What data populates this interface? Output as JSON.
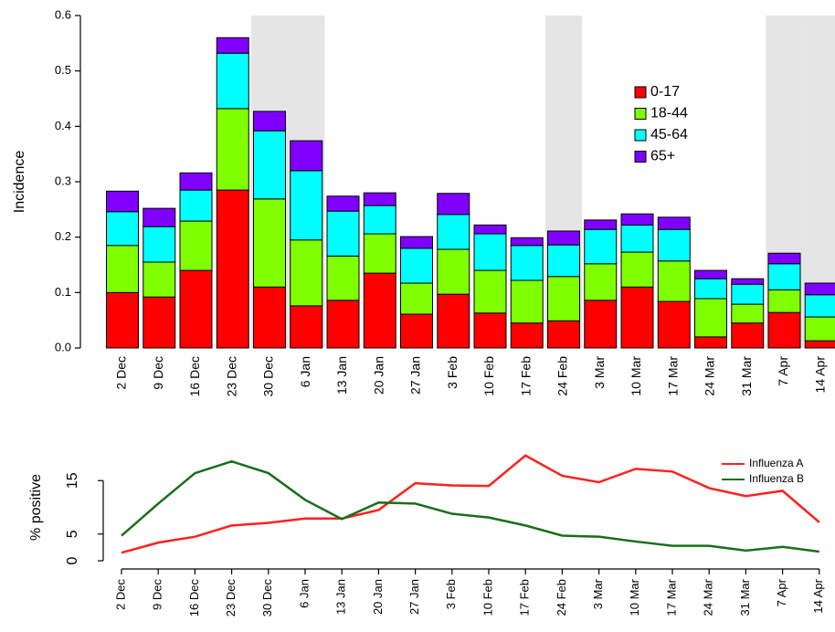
{
  "chart_data": [
    {
      "type": "bar",
      "stacked": true,
      "y_label": "Incidence",
      "categories": [
        "2 Dec",
        "9 Dec",
        "16 Dec",
        "23 Dec",
        "30 Dec",
        "6 Jan",
        "13 Jan",
        "20 Jan",
        "27 Jan",
        "3 Feb",
        "10 Feb",
        "17 Feb",
        "24 Feb",
        "3 Mar",
        "10 Mar",
        "17 Mar",
        "24 Mar",
        "31 Mar",
        "7 Apr",
        "14 Apr"
      ],
      "series": [
        {
          "name": "0-17",
          "color": "#ff0000",
          "values": [
            0.1,
            0.092,
            0.14,
            0.285,
            0.11,
            0.076,
            0.086,
            0.135,
            0.061,
            0.097,
            0.063,
            0.045,
            0.049,
            0.086,
            0.11,
            0.084,
            0.02,
            0.045,
            0.064,
            0.013
          ]
        },
        {
          "name": "18-44",
          "color": "#80ff00",
          "values": [
            0.085,
            0.063,
            0.089,
            0.147,
            0.159,
            0.119,
            0.08,
            0.071,
            0.056,
            0.081,
            0.077,
            0.077,
            0.08,
            0.066,
            0.063,
            0.073,
            0.069,
            0.034,
            0.041,
            0.043
          ]
        },
        {
          "name": "45-64",
          "color": "#00ffff",
          "values": [
            0.061,
            0.064,
            0.056,
            0.1,
            0.123,
            0.125,
            0.081,
            0.051,
            0.063,
            0.063,
            0.066,
            0.063,
            0.057,
            0.062,
            0.049,
            0.057,
            0.036,
            0.036,
            0.047,
            0.04
          ]
        },
        {
          "name": "65+",
          "color": "#8000ff",
          "values": [
            0.037,
            0.033,
            0.031,
            0.028,
            0.035,
            0.054,
            0.027,
            0.023,
            0.021,
            0.038,
            0.016,
            0.014,
            0.025,
            0.017,
            0.02,
            0.022,
            0.015,
            0.01,
            0.019,
            0.021
          ]
        }
      ],
      "shaded": [
        4,
        5,
        12,
        18,
        19
      ],
      "ylim": [
        0,
        0.6
      ],
      "yticks": [
        {
          "value": 0,
          "label": "0.0"
        },
        0.1,
        0.2,
        0.3,
        0.4,
        0.5,
        0.6
      ],
      "legend": "top-right"
    },
    {
      "type": "line",
      "y_label": "% positive",
      "categories": [
        "2 Dec",
        "9 Dec",
        "16 Dec",
        "23 Dec",
        "30 Dec",
        "6 Jan",
        "13 Jan",
        "20 Jan",
        "27 Jan",
        "3 Feb",
        "10 Feb",
        "17 Feb",
        "24 Feb",
        "3 Mar",
        "10 Mar",
        "17 Mar",
        "24 Mar",
        "31 Mar",
        "7 Apr",
        "14 Apr"
      ],
      "series": [
        {
          "name": "Influenza A",
          "color": "#ff2020",
          "values": [
            1.5,
            3.4,
            4.5,
            6.6,
            7.1,
            7.9,
            7.9,
            9.5,
            14.5,
            14.1,
            14.0,
            19.7,
            15.9,
            14.7,
            17.2,
            16.7,
            13.6,
            12.1,
            13.1,
            7.2
          ]
        },
        {
          "name": "Influenza B",
          "color": "#1a6e1a",
          "values": [
            4.7,
            10.7,
            16.4,
            18.6,
            16.4,
            11.4,
            7.8,
            10.9,
            10.7,
            8.8,
            8.1,
            6.6,
            4.7,
            4.5,
            3.6,
            2.8,
            2.8,
            1.9,
            2.6,
            1.7
          ]
        }
      ],
      "ylim": [
        0,
        20
      ],
      "yticks": [
        0,
        5,
        15
      ],
      "legend": "top-right"
    }
  ]
}
